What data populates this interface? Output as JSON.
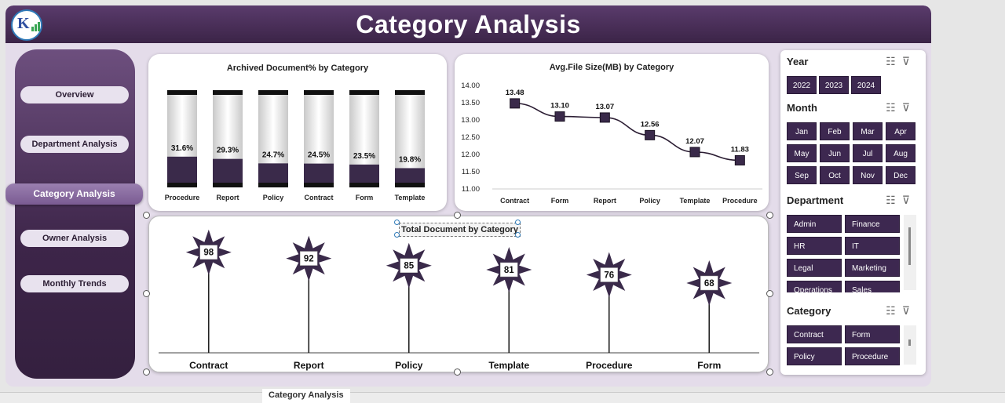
{
  "header": {
    "title": "Category Analysis",
    "logo_text": "K"
  },
  "nav": {
    "items": [
      {
        "label": "Overview",
        "active": false
      },
      {
        "label": "Department Analysis",
        "active": false
      },
      {
        "label": "Category Analysis",
        "active": true
      },
      {
        "label": "Owner Analysis",
        "active": false
      },
      {
        "label": "Monthly Trends",
        "active": false
      }
    ]
  },
  "colors": {
    "primary": "#3d2850",
    "accent": "#7a5b92",
    "header": "#4a2f5a"
  },
  "chart_data": [
    {
      "type": "bar",
      "title": "Archived Document% by Category",
      "categories": [
        "Procedure",
        "Report",
        "Policy",
        "Contract",
        "Form",
        "Template"
      ],
      "values": [
        31.6,
        29.3,
        24.7,
        24.5,
        23.5,
        19.8
      ],
      "data_labels": [
        "31.6%",
        "29.3%",
        "24.7%",
        "24.5%",
        "23.5%",
        "19.8%"
      ],
      "ylim": [
        0,
        100
      ]
    },
    {
      "type": "line",
      "title": "Avg.File Size(MB) by Category",
      "categories": [
        "Contract",
        "Form",
        "Report",
        "Policy",
        "Template",
        "Procedure"
      ],
      "values": [
        13.48,
        13.1,
        13.07,
        12.56,
        12.07,
        11.83
      ],
      "data_labels": [
        "13.48",
        "13.10",
        "13.07",
        "12.56",
        "12.07",
        "11.83"
      ],
      "ylim": [
        11.0,
        14.0
      ],
      "yticks": [
        "14.00",
        "13.50",
        "13.00",
        "12.50",
        "12.00",
        "11.50",
        "11.00"
      ]
    },
    {
      "type": "bar",
      "title": "Total Document by Category",
      "categories": [
        "Contract",
        "Report",
        "Policy",
        "Template",
        "Procedure",
        "Form"
      ],
      "values": [
        98,
        92,
        85,
        81,
        76,
        68
      ],
      "data_labels": [
        "98",
        "92",
        "85",
        "81",
        "76",
        "68"
      ],
      "ylim": [
        0,
        110
      ]
    }
  ],
  "slicers": {
    "year": {
      "title": "Year",
      "items": [
        "2022",
        "2023",
        "2024"
      ]
    },
    "month": {
      "title": "Month",
      "items": [
        "Jan",
        "Feb",
        "Mar",
        "Apr",
        "May",
        "Jun",
        "Jul",
        "Aug",
        "Sep",
        "Oct",
        "Nov",
        "Dec"
      ]
    },
    "department": {
      "title": "Department",
      "items": [
        "Admin",
        "Finance",
        "HR",
        "IT",
        "Legal",
        "Marketing",
        "Operations",
        "Sales"
      ]
    },
    "category": {
      "title": "Category",
      "items": [
        "Contract",
        "Form",
        "Policy",
        "Procedure"
      ]
    },
    "icons": [
      "multi-select-icon",
      "clear-filter-icon"
    ]
  },
  "sheet_tabs": [
    "Category Analysis"
  ]
}
